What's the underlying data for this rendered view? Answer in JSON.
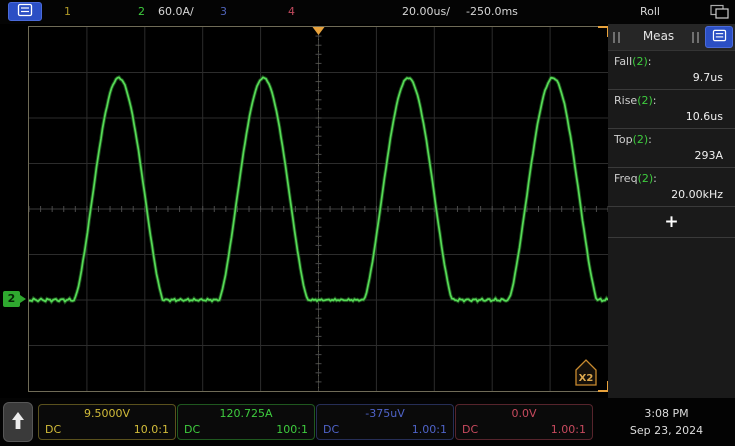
{
  "top_bar": {
    "channels": [
      {
        "label": "1",
        "color": "#b09a28"
      },
      {
        "label": "2",
        "color": "#3ecc3e",
        "scale": "60.0A/"
      },
      {
        "label": "3",
        "color": "#4f63b8"
      },
      {
        "label": "4",
        "color": "#c24a5e"
      }
    ],
    "timebase": "20.00us/",
    "delay": "-250.0ms",
    "acq_mode": "Roll"
  },
  "plot": {
    "zoom_tag": "X2",
    "ground_marker_channel": "2"
  },
  "sidebar": {
    "title": "Meas",
    "add_button": "+",
    "measurements": [
      {
        "name": "Fall",
        "chan": "(2)",
        "colon": ":",
        "value": "9.7us"
      },
      {
        "name": "Rise",
        "chan": "(2)",
        "colon": ":",
        "value": "10.6us"
      },
      {
        "name": "Top",
        "chan": "(2)",
        "colon": ":",
        "value": "293A"
      },
      {
        "name": "Freq",
        "chan": "(2)",
        "colon": ":",
        "value": "20.00kHz"
      }
    ]
  },
  "bottom_bar": {
    "channels": [
      {
        "value": "9.5000V",
        "coupling": "DC",
        "probe": "10.0:1",
        "color": "#d2bc3a"
      },
      {
        "value": "120.725A",
        "coupling": "DC",
        "probe": "100:1",
        "color": "#3ecc3e"
      },
      {
        "value": "-375uV",
        "coupling": "DC",
        "probe": "1.00:1",
        "color": "#4f63c8"
      },
      {
        "value": "0.0V",
        "coupling": "DC",
        "probe": "1.00:1",
        "color": "#c84a5e"
      }
    ],
    "time": "3:08 PM",
    "date": "Sep 23, 2024"
  },
  "chart_data": {
    "type": "line",
    "title": "Oscilloscope roll-mode acquisition, channel 2 current trace",
    "x_axis": {
      "units": "time",
      "scale_per_div": "20.00us",
      "divisions": 10,
      "total_us": 200,
      "delay": "-250.0ms"
    },
    "y_axis": {
      "units": "A",
      "scale_per_div": "60.0A",
      "divisions": 8,
      "ground_divs_from_bottom": 2
    },
    "series": [
      {
        "name": "CH2",
        "color": "#57da57",
        "shape": "flat-bottom clipped-sine humps (positive half-wave, rounded tops)",
        "frequency_kHz": 20.0,
        "period_us": 50,
        "base_A": 0,
        "peak_A": 293,
        "rise_us": 10.6,
        "fall_us": 9.7,
        "cycles_visible": 4,
        "first_peak_x_frac": 0.155,
        "clip_level": -0.35,
        "shape_exponent": 1.35,
        "noise_A": 2
      }
    ],
    "annotations": {
      "trigger_marker_x_frac": 0.5,
      "time_ref_line": "dotted vertical at center"
    }
  }
}
